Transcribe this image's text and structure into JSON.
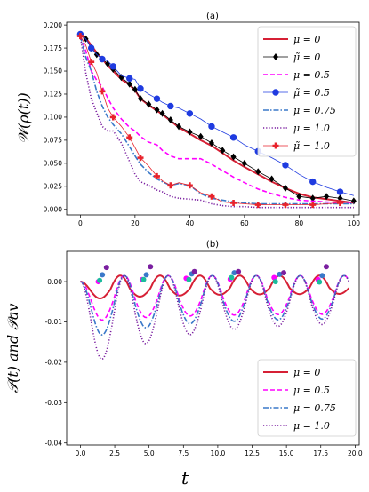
{
  "chart_data": [
    {
      "type": "line",
      "title": "(a)",
      "ylabel": "𝒲(ρ(t))",
      "xlim": [
        -5,
        102
      ],
      "ylim": [
        -0.006,
        0.203
      ],
      "xticks": [
        0,
        20,
        40,
        60,
        80,
        100
      ],
      "xtick_labels": [
        "0",
        "20",
        "40",
        "60",
        "80",
        "100"
      ],
      "yticks": [
        0.0,
        0.025,
        0.05,
        0.075,
        0.1,
        0.125,
        0.15,
        0.175,
        0.2
      ],
      "ytick_labels": [
        "0.000",
        "0.025",
        "0.050",
        "0.075",
        "0.100",
        "0.125",
        "0.150",
        "0.175",
        "0.200"
      ],
      "legend_position": "top-right",
      "series": [
        {
          "name": "μ = 0",
          "color": "#d62035",
          "style": "solid",
          "marker": "none",
          "x": [
            0,
            2,
            4,
            6,
            8,
            10,
            12,
            15,
            18,
            20,
            22,
            25,
            28,
            30,
            33,
            36,
            40,
            44,
            48,
            52,
            56,
            60,
            65,
            70,
            75,
            80,
            85,
            90,
            95,
            100
          ],
          "y": [
            0.188,
            0.186,
            0.178,
            0.17,
            0.163,
            0.156,
            0.15,
            0.141,
            0.135,
            0.129,
            0.12,
            0.113,
            0.107,
            0.103,
            0.096,
            0.089,
            0.082,
            0.075,
            0.069,
            0.061,
            0.053,
            0.046,
            0.038,
            0.03,
            0.023,
            0.017,
            0.013,
            0.011,
            0.009,
            0.007
          ]
        },
        {
          "name": "μ̃ = 0",
          "color": "#000000",
          "style": "thin",
          "marker": "diamond",
          "x": [
            0,
            2,
            4,
            6,
            8,
            10,
            12,
            15,
            18,
            20,
            22,
            25,
            28,
            30,
            33,
            36,
            40,
            44,
            48,
            52,
            56,
            60,
            65,
            70,
            75,
            80,
            85,
            90,
            95,
            100
          ],
          "y": [
            0.189,
            0.185,
            0.175,
            0.168,
            0.163,
            0.158,
            0.152,
            0.143,
            0.136,
            0.13,
            0.12,
            0.114,
            0.108,
            0.104,
            0.097,
            0.09,
            0.084,
            0.079,
            0.072,
            0.064,
            0.057,
            0.05,
            0.041,
            0.033,
            0.023,
            0.014,
            0.012,
            0.014,
            0.012,
            0.009
          ]
        },
        {
          "name": "μ = 0.5",
          "color": "#ff00ff",
          "style": "dashed",
          "marker": "none",
          "x": [
            0,
            2,
            4,
            6,
            8,
            10,
            12,
            15,
            18,
            20,
            22,
            25,
            28,
            30,
            33,
            36,
            40,
            44,
            48,
            52,
            56,
            60,
            65,
            70,
            75,
            80,
            85,
            90,
            95,
            100
          ],
          "y": [
            0.188,
            0.172,
            0.15,
            0.14,
            0.133,
            0.121,
            0.11,
            0.098,
            0.089,
            0.085,
            0.079,
            0.073,
            0.07,
            0.064,
            0.058,
            0.055,
            0.055,
            0.055,
            0.049,
            0.042,
            0.035,
            0.029,
            0.022,
            0.017,
            0.013,
            0.01,
            0.009,
            0.008,
            0.007,
            0.007
          ]
        },
        {
          "name": "μ̃ = 0.5",
          "color": "#1f3be0",
          "style": "thin",
          "marker": "circle",
          "x": [
            0,
            2,
            4,
            6,
            8,
            10,
            12,
            15,
            18,
            20,
            22,
            25,
            28,
            30,
            33,
            36,
            40,
            44,
            48,
            52,
            56,
            60,
            65,
            70,
            75,
            80,
            85,
            90,
            95,
            100
          ],
          "y": [
            0.19,
            0.185,
            0.175,
            0.168,
            0.163,
            0.161,
            0.155,
            0.145,
            0.142,
            0.141,
            0.131,
            0.125,
            0.12,
            0.116,
            0.112,
            0.11,
            0.104,
            0.098,
            0.09,
            0.084,
            0.078,
            0.07,
            0.063,
            0.056,
            0.048,
            0.038,
            0.03,
            0.024,
            0.019,
            0.015
          ]
        },
        {
          "name": "μ = 0.75",
          "color": "#3a78c9",
          "style": "dashdot",
          "marker": "none",
          "x": [
            0,
            2,
            4,
            6,
            8,
            10,
            12,
            15,
            18,
            20,
            22,
            25,
            28,
            30,
            33,
            36,
            40,
            44,
            48,
            52,
            56,
            60,
            65,
            70,
            75,
            80,
            85,
            90,
            95,
            100
          ],
          "y": [
            0.188,
            0.165,
            0.15,
            0.128,
            0.112,
            0.1,
            0.092,
            0.082,
            0.068,
            0.058,
            0.049,
            0.04,
            0.033,
            0.03,
            0.026,
            0.028,
            0.026,
            0.017,
            0.012,
            0.01,
            0.008,
            0.007,
            0.006,
            0.006,
            0.006,
            0.006,
            0.006,
            0.006,
            0.006,
            0.006
          ]
        },
        {
          "name": "μ = 1.0",
          "color": "#7a1fa0",
          "style": "dotted",
          "marker": "none",
          "x": [
            0,
            2,
            4,
            6,
            8,
            10,
            12,
            15,
            18,
            20,
            22,
            25,
            28,
            30,
            33,
            36,
            40,
            44,
            48,
            52,
            56,
            60,
            65,
            70,
            75,
            80,
            85,
            90,
            95,
            100
          ],
          "y": [
            0.188,
            0.148,
            0.12,
            0.105,
            0.09,
            0.085,
            0.085,
            0.072,
            0.052,
            0.038,
            0.03,
            0.026,
            0.021,
            0.019,
            0.014,
            0.012,
            0.011,
            0.01,
            0.006,
            0.004,
            0.003,
            0.003,
            0.002,
            0.002,
            0.002,
            0.002,
            0.002,
            0.002,
            0.002,
            0.002
          ]
        },
        {
          "name": "μ̃ = 1.0",
          "color": "#e8222b",
          "style": "thin",
          "marker": "plus",
          "x": [
            0,
            2,
            4,
            6,
            8,
            10,
            12,
            15,
            18,
            20,
            22,
            25,
            28,
            30,
            33,
            36,
            40,
            44,
            48,
            52,
            56,
            60,
            65,
            70,
            75,
            80,
            85,
            90,
            95,
            100
          ],
          "y": [
            0.188,
            0.178,
            0.16,
            0.148,
            0.128,
            0.11,
            0.1,
            0.09,
            0.078,
            0.067,
            0.056,
            0.047,
            0.036,
            0.031,
            0.026,
            0.029,
            0.026,
            0.018,
            0.014,
            0.008,
            0.007,
            0.006,
            0.005,
            0.005,
            0.005,
            0.005,
            0.005,
            0.006,
            0.007,
            0.008
          ]
        }
      ]
    },
    {
      "type": "line",
      "title": "(b)",
      "ylabel": "𝒫(t) and 𝒫av",
      "xlabel": "t",
      "xlim": [
        -1,
        20.3
      ],
      "ylim": [
        -0.0405,
        0.0075
      ],
      "xticks": [
        0,
        2.5,
        5,
        7.5,
        10,
        12.5,
        15,
        17.5,
        20
      ],
      "xtick_labels": [
        "0.0",
        "2.5",
        "5.0",
        "7.5",
        "10.0",
        "12.5",
        "15.0",
        "17.5",
        "20.0"
      ],
      "yticks": [
        0,
        -0.01,
        -0.02,
        -0.03,
        -0.04
      ],
      "ytick_labels": [
        "0.00",
        "-0.01",
        "-0.02",
        "-0.03",
        "-0.04"
      ],
      "legend_position": "bottom-right",
      "series": [
        {
          "name": "μ = 0",
          "color": "#d62035",
          "style": "solid",
          "marker": "none",
          "period": 2.9,
          "amp": [
            0.0045,
            0.003
          ],
          "offset": -0.004
        },
        {
          "name": "μ = 0.5",
          "color": "#ff00ff",
          "style": "dashed",
          "marker": "none",
          "period": 3.2,
          "amp": [
            0.01,
            0.008
          ],
          "offset": -0.007
        },
        {
          "name": "μ = 0.75",
          "color": "#3a78c9",
          "style": "dashdot",
          "marker": "none",
          "period": 3.2,
          "amp": [
            0.0145,
            0.009
          ],
          "offset": -0.01
        },
        {
          "name": "μ = 1.0",
          "color": "#7a1fa0",
          "style": "dotted",
          "marker": "none",
          "period": 3.2,
          "amp": [
            0.022,
            0.01
          ],
          "offset": -0.015
        }
      ],
      "av_points": [
        {
          "color": "#ff00ff",
          "x": [
            1.3,
            4.5,
            7.7,
            10.9,
            14.1,
            17.3
          ],
          "y": [
            0.0,
            0.0005,
            0.0008,
            0.0006,
            0.001,
            0.0005
          ]
        },
        {
          "color": "#1abc9c",
          "x": [
            1.4,
            4.6,
            7.9,
            11.0,
            14.2,
            17.4
          ],
          "y": [
            0.0003,
            0.0005,
            0.0005,
            0.001,
            0.0,
            -0.0001
          ]
        },
        {
          "color": "#3a78c9",
          "x": [
            1.6,
            4.8,
            8.1,
            11.2,
            14.5,
            17.6
          ],
          "y": [
            0.0017,
            0.0017,
            0.0019,
            0.0022,
            0.0018,
            0.0015
          ]
        },
        {
          "color": "#7a1fa0",
          "x": [
            1.9,
            5.1,
            8.3,
            11.5,
            14.8,
            17.9
          ],
          "y": [
            0.0035,
            0.0037,
            0.0025,
            0.0025,
            0.0022,
            0.0037
          ]
        }
      ]
    }
  ]
}
